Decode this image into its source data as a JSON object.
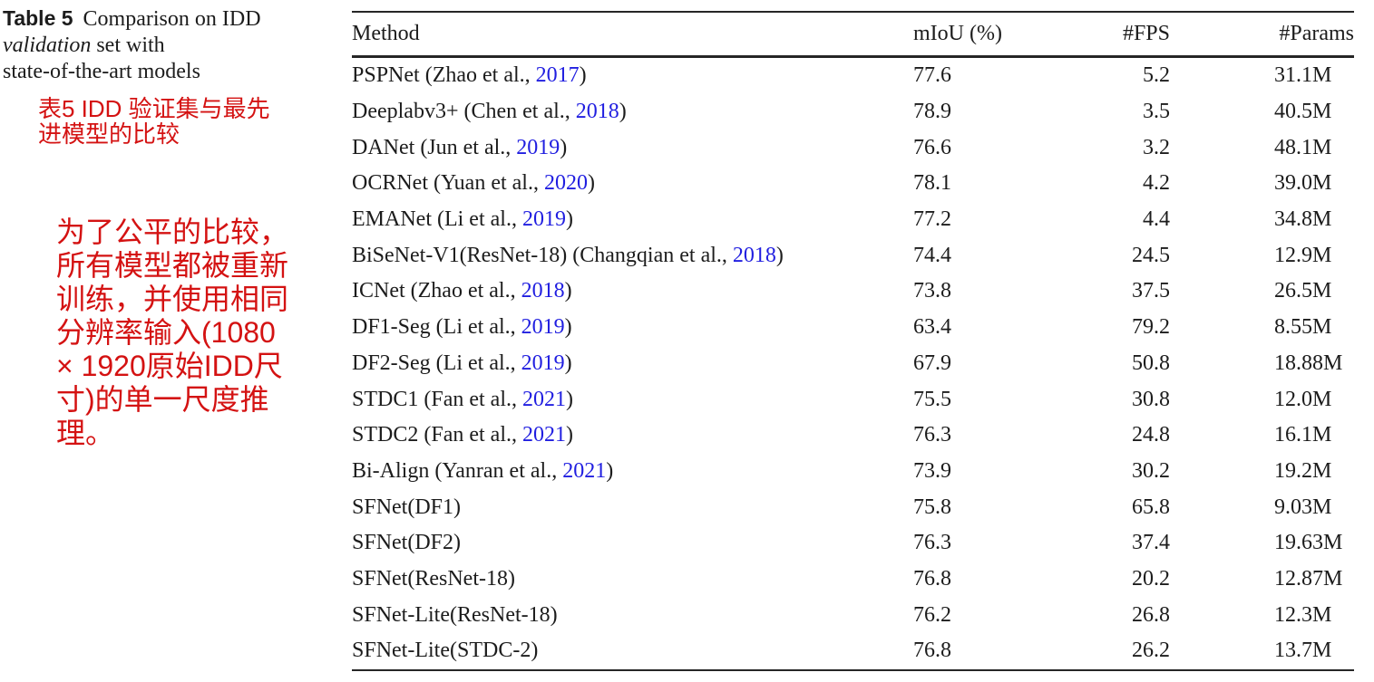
{
  "caption": {
    "label": "Table 5",
    "line1": "Comparison on IDD",
    "line2_italic": "validation",
    "line2_rest": " set with",
    "line3": "state-of-the-art models",
    "caption_zh": "表5 IDD 验证集与最先\n进模型的比较",
    "note_zh": "为了公平的比较，\n所有模型都被重新\n训练，并使用相同\n分辨率输入(1080\n× 1920原始IDD尺\n寸)的单一尺度推\n理。"
  },
  "colors": {
    "accent_red": "#d41212",
    "link_blue": "#201ee0",
    "text": "#1c1c1c",
    "rule": "#262626"
  },
  "table": {
    "headers": [
      "Method",
      "mIoU (%)",
      "#FPS",
      "#Params"
    ],
    "rows": [
      {
        "method": "PSPNet (Zhao et al., ",
        "year": "2017",
        "suffix": ")",
        "miou": "77.6",
        "fps": "5.2",
        "params": "31.1M"
      },
      {
        "method": "Deeplabv3+ (Chen et al., ",
        "year": "2018",
        "suffix": ")",
        "miou": "78.9",
        "fps": "3.5",
        "params": "40.5M"
      },
      {
        "method": "DANet (Jun et al., ",
        "year": "2019",
        "suffix": ")",
        "miou": "76.6",
        "fps": "3.2",
        "params": "48.1M"
      },
      {
        "method": "OCRNet (Yuan et al., ",
        "year": "2020",
        "suffix": ")",
        "miou": "78.1",
        "fps": "4.2",
        "params": "39.0M"
      },
      {
        "method": "EMANet (Li et al., ",
        "year": "2019",
        "suffix": ")",
        "miou": "77.2",
        "fps": "4.4",
        "params": "34.8M"
      },
      {
        "method": "BiSeNet-V1(ResNet-18) (Changqian et al., ",
        "year": "2018",
        "suffix": ")",
        "miou": "74.4",
        "fps": "24.5",
        "params": "12.9M"
      },
      {
        "method": "ICNet (Zhao et al., ",
        "year": "2018",
        "suffix": ")",
        "miou": "73.8",
        "fps": "37.5",
        "params": "26.5M"
      },
      {
        "method": "DF1-Seg (Li et al., ",
        "year": "2019",
        "suffix": ")",
        "miou": "63.4",
        "fps": "79.2",
        "params": "8.55M"
      },
      {
        "method": "DF2-Seg (Li et al., ",
        "year": "2019",
        "suffix": ")",
        "miou": "67.9",
        "fps": "50.8",
        "params": "18.88M"
      },
      {
        "method": "STDC1 (Fan et al., ",
        "year": "2021",
        "suffix": ")",
        "miou": "75.5",
        "fps": "30.8",
        "params": "12.0M"
      },
      {
        "method": "STDC2 (Fan et al., ",
        "year": "2021",
        "suffix": ")",
        "miou": "76.3",
        "fps": "24.8",
        "params": "16.1M"
      },
      {
        "method": "Bi-Align (Yanran et al., ",
        "year": "2021",
        "suffix": ")",
        "miou": "73.9",
        "fps": "30.2",
        "params": "19.2M"
      },
      {
        "method": "SFNet(DF1)",
        "year": "",
        "suffix": "",
        "miou": "75.8",
        "fps": "65.8",
        "params": "9.03M"
      },
      {
        "method": "SFNet(DF2)",
        "year": "",
        "suffix": "",
        "miou": "76.3",
        "fps": "37.4",
        "params": "19.63M"
      },
      {
        "method": "SFNet(ResNet-18)",
        "year": "",
        "suffix": "",
        "miou": "76.8",
        "fps": "20.2",
        "params": "12.87M"
      },
      {
        "method": "SFNet-Lite(ResNet-18)",
        "year": "",
        "suffix": "",
        "miou": "76.2",
        "fps": "26.8",
        "params": "12.3M"
      },
      {
        "method": "SFNet-Lite(STDC-2)",
        "year": "",
        "suffix": "",
        "miou": "76.8",
        "fps": "26.2",
        "params": "13.7M"
      }
    ]
  }
}
